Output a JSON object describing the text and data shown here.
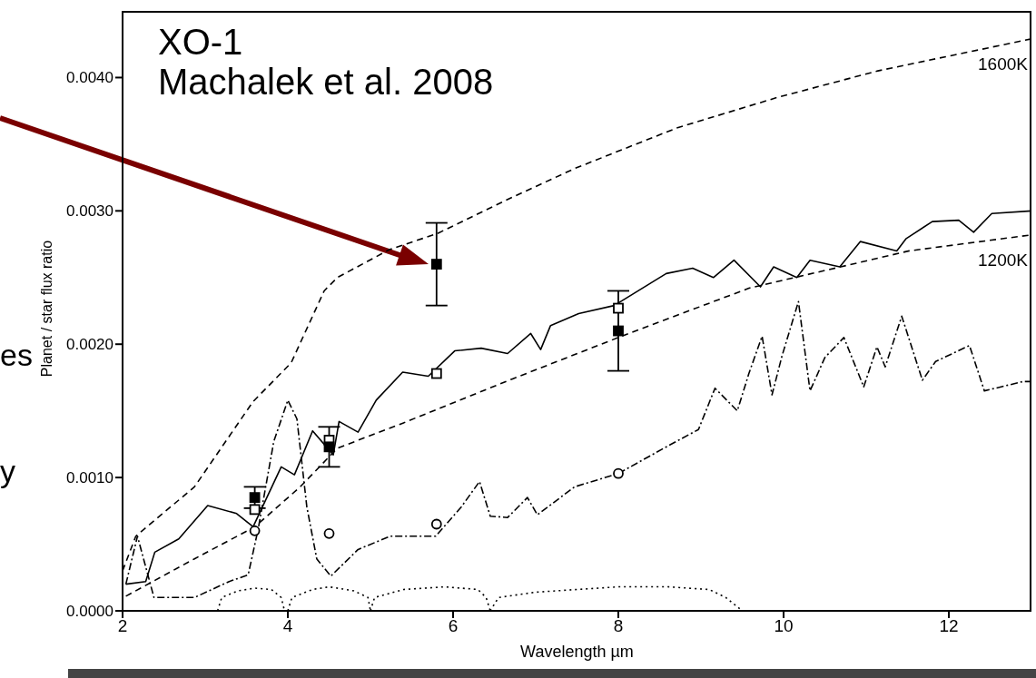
{
  "chart_data": {
    "type": "line",
    "title": "XO-1",
    "subtitle": "Machalek et al. 2008",
    "xlabel": "Wavelength µm",
    "ylabel": "Planet / star flux ratio",
    "annotations": [
      "es",
      "y"
    ],
    "xlim": [
      2,
      13
    ],
    "xticks": [
      2,
      4,
      6,
      8,
      10,
      12
    ],
    "ylim": [
      0,
      0.0045
    ],
    "yticks": [
      {
        "value": 0,
        "label": "0.0000"
      },
      {
        "value": 0.001,
        "label": "0.0010"
      },
      {
        "value": 0.002,
        "label": "0.0020"
      },
      {
        "value": 0.003,
        "label": "0.0030"
      },
      {
        "value": 0.004,
        "label": "0.0040"
      }
    ],
    "grid": false,
    "series": [
      {
        "name": "1600K",
        "color": "#000000",
        "line_style": "dashed",
        "marker": "none",
        "x": [
          2.0,
          2.16,
          2.87,
          3.58,
          4.04,
          4.44,
          4.6,
          5.23,
          5.81,
          6.64,
          7.48,
          8.7,
          9.92,
          11.14,
          13
        ],
        "values": [
          0.0003,
          0.00056,
          0.00093,
          0.00157,
          0.00186,
          0.0024,
          0.0025,
          0.00271,
          0.00283,
          0.00308,
          0.00332,
          0.00362,
          0.00385,
          0.00405,
          0.00429
        ]
      },
      {
        "name": "1200K",
        "color": "#000000",
        "line_style": "dashed",
        "marker": "none",
        "x": [
          2.04,
          2.87,
          3.6,
          4.15,
          4.6,
          5.4,
          6.72,
          8.0,
          9.58,
          11.52,
          13
        ],
        "values": [
          0.00011,
          0.00039,
          0.00063,
          0.00093,
          0.00122,
          0.00141,
          0.00174,
          0.00205,
          0.00242,
          0.0027,
          0.00282
        ]
      },
      {
        "color": "#000000",
        "line_style": "solid",
        "marker": "none",
        "x": [
          2.04,
          2.28,
          2.39,
          2.68,
          3.03,
          3.38,
          3.58,
          3.92,
          4.08,
          4.3,
          4.55,
          4.62,
          4.85,
          5.07,
          5.39,
          5.7,
          6.02,
          6.34,
          6.66,
          6.94,
          7.06,
          7.18,
          7.52,
          7.95,
          8.58,
          8.9,
          9.15,
          9.4,
          9.72,
          9.88,
          10.16,
          10.32,
          10.68,
          10.93,
          11.37,
          11.48,
          11.8,
          12.12,
          12.3,
          12.52,
          13
        ],
        "values": [
          0.0002,
          0.00022,
          0.00044,
          0.00054,
          0.00079,
          0.00073,
          0.00063,
          0.00108,
          0.00102,
          0.00135,
          0.00117,
          0.00142,
          0.00134,
          0.00158,
          0.00179,
          0.00176,
          0.00195,
          0.00197,
          0.00193,
          0.00208,
          0.00196,
          0.00214,
          0.00223,
          0.00229,
          0.00253,
          0.00257,
          0.0025,
          0.00263,
          0.00243,
          0.00258,
          0.0025,
          0.00263,
          0.00258,
          0.00277,
          0.0027,
          0.00279,
          0.00292,
          0.00293,
          0.00284,
          0.00298,
          0.003
        ]
      },
      {
        "color": "#000000",
        "line_style": "dashdot",
        "marker": "none",
        "x": [
          2.04,
          2.18,
          2.38,
          2.54,
          2.87,
          3.29,
          3.52,
          3.64,
          3.83,
          4.0,
          4.11,
          4.23,
          4.35,
          4.52,
          4.85,
          5.24,
          5.79,
          6.1,
          6.32,
          6.45,
          6.66,
          6.9,
          7.02,
          7.47,
          8.0,
          8.61,
          8.97,
          9.17,
          9.44,
          9.58,
          9.74,
          9.86,
          9.98,
          10.18,
          10.32,
          10.5,
          10.73,
          10.97,
          11.13,
          11.23,
          11.43,
          11.68,
          11.84,
          12.25,
          12.43,
          12.9,
          13
        ],
        "values": [
          0.0002,
          0.00056,
          0.0001,
          0.0001,
          0.0001,
          0.00022,
          0.00027,
          0.00061,
          0.00127,
          0.00158,
          0.00144,
          0.00078,
          0.00039,
          0.00026,
          0.00046,
          0.00056,
          0.00056,
          0.00078,
          0.00097,
          0.00071,
          0.0007,
          0.00085,
          0.00072,
          0.00093,
          0.00103,
          0.00124,
          0.00136,
          0.00167,
          0.0015,
          0.00178,
          0.00206,
          0.00162,
          0.00191,
          0.00232,
          0.00165,
          0.0019,
          0.00205,
          0.00168,
          0.00198,
          0.00183,
          0.00221,
          0.00173,
          0.00187,
          0.00199,
          0.00165,
          0.00172,
          0.00172
        ]
      },
      {
        "type": "line",
        "color": "#000000",
        "line_style": "dotted",
        "marker": "none",
        "x": [
          3.15,
          3.2,
          3.4,
          3.6,
          3.8,
          3.92,
          3.96
        ],
        "values": [
          0,
          0.0001,
          0.00015,
          0.00017,
          0.00016,
          0.0001,
          0
        ]
      },
      {
        "type": "line",
        "color": "#000000",
        "line_style": "dotted",
        "marker": "none",
        "x": [
          4.0,
          4.05,
          4.3,
          4.5,
          4.8,
          4.97,
          5.0
        ],
        "values": [
          0,
          0.0001,
          0.00016,
          0.00018,
          0.00015,
          0.0001,
          0
        ]
      },
      {
        "type": "line",
        "color": "#000000",
        "line_style": "dotted",
        "marker": "none",
        "x": [
          5.0,
          5.05,
          5.4,
          5.9,
          6.3,
          6.4,
          6.45
        ],
        "values": [
          0,
          0.0001,
          0.00016,
          0.00018,
          0.00016,
          0.0001,
          0
        ]
      },
      {
        "type": "line",
        "color": "#000000",
        "line_style": "dotted",
        "marker": "none",
        "x": [
          6.45,
          6.55,
          7.0,
          8.0,
          8.6,
          9.1,
          9.3,
          9.5
        ],
        "values": [
          0,
          0.0001,
          0.00014,
          0.00018,
          0.00018,
          0.00016,
          0.0001,
          0
        ]
      },
      {
        "type": "scatter",
        "color": "#000000",
        "marker": "square",
        "x": [
          3.6,
          4.5,
          5.8,
          8.0
        ],
        "values": [
          0.00076,
          0.00128,
          0.00178,
          0.00227
        ]
      },
      {
        "type": "scatter",
        "color": "#000000",
        "marker": "circle",
        "x": [
          3.6,
          4.5,
          5.8,
          8.0
        ],
        "values": [
          0.0006,
          0.00058,
          0.00065,
          0.00103
        ]
      },
      {
        "type": "scatter",
        "color": "#000000",
        "marker": "square",
        "x": [
          3.6,
          4.5,
          5.8,
          8.0
        ],
        "values": [
          0.00085,
          0.00123,
          0.0026,
          0.0021
        ],
        "errors": [
          8e-05,
          0.00015,
          0.00031,
          0.0003
        ]
      }
    ]
  }
}
